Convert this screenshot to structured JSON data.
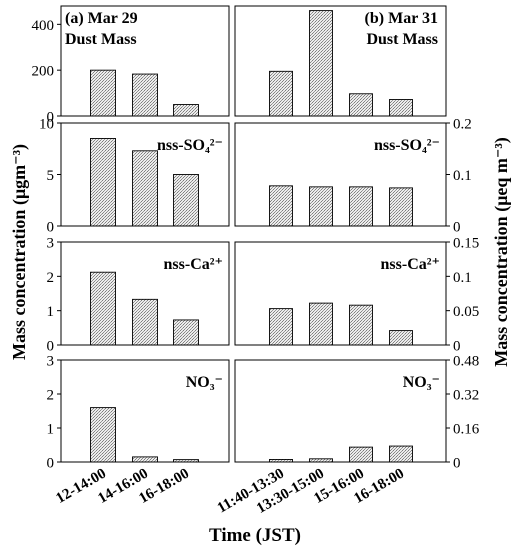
{
  "figure": {
    "y_left_label": "Mass concentration (μgm⁻³)",
    "y_right_label": "Mass concentration (μeq m⁻³)",
    "x_label": "Time (JST)"
  },
  "chart_data": [
    {
      "type": "bar",
      "panel_title": "(a) Mar 29",
      "series_label": "Dust Mass",
      "categories": [
        "12-14:00",
        "14-16:00",
        "16-18:00"
      ],
      "values": [
        200,
        183,
        50
      ],
      "ylim": [
        0,
        480
      ],
      "yticks": [
        "0",
        "200",
        "400"
      ]
    },
    {
      "type": "bar",
      "panel_title": "(b) Mar 31",
      "series_label": "Dust Mass",
      "categories": [
        "11:40-13:30",
        "13:30-15:00",
        "15-16:00",
        "16-18:00"
      ],
      "values": [
        195,
        460,
        97,
        72
      ],
      "ylim": [
        0,
        480
      ],
      "yticks": []
    },
    {
      "type": "bar",
      "series_label": "nss-SO₄²⁻",
      "categories": [
        "12-14:00",
        "14-16:00",
        "16-18:00"
      ],
      "values": [
        8.5,
        7.3,
        5.0
      ],
      "ylim": [
        0,
        10
      ],
      "yticks": [
        "0",
        "5",
        "10"
      ]
    },
    {
      "type": "bar",
      "series_label": "nss-SO₄²⁻",
      "categories": [
        "11:40-13:30",
        "13:30-15:00",
        "15-16:00",
        "16-18:00"
      ],
      "values": [
        0.078,
        0.076,
        0.076,
        0.074
      ],
      "ylim": [
        0,
        0.2
      ],
      "yticks": [
        "0",
        "0.1",
        "0.2"
      ]
    },
    {
      "type": "bar",
      "series_label": "nss-Ca²⁺",
      "categories": [
        "12-14:00",
        "14-16:00",
        "16-18:00"
      ],
      "values": [
        2.12,
        1.33,
        0.73
      ],
      "ylim": [
        0,
        3
      ],
      "yticks": [
        "0",
        "1",
        "2",
        "3"
      ]
    },
    {
      "type": "bar",
      "series_label": "nss-Ca²⁺",
      "categories": [
        "11:40-13:30",
        "13:30-15:00",
        "15-16:00",
        "16-18:00"
      ],
      "values": [
        0.053,
        0.061,
        0.058,
        0.021
      ],
      "ylim": [
        0,
        0.15
      ],
      "yticks": [
        "0",
        "0.05",
        "0.1",
        "0.15"
      ]
    },
    {
      "type": "bar",
      "series_label": "NO₃⁻",
      "categories": [
        "12-14:00",
        "14-16:00",
        "16-18:00"
      ],
      "values": [
        1.6,
        0.15,
        0.07
      ],
      "ylim": [
        0,
        3
      ],
      "yticks": [
        "0",
        "1",
        "2",
        "3"
      ]
    },
    {
      "type": "bar",
      "series_label": "NO₃⁻",
      "categories": [
        "11:40-13:30",
        "13:30-15:00",
        "15-16:00",
        "16-18:00"
      ],
      "values": [
        0.012,
        0.015,
        0.07,
        0.075
      ],
      "ylim": [
        0,
        0.48
      ],
      "yticks": [
        "0",
        "0.16",
        "0.32",
        "0.48"
      ]
    }
  ]
}
